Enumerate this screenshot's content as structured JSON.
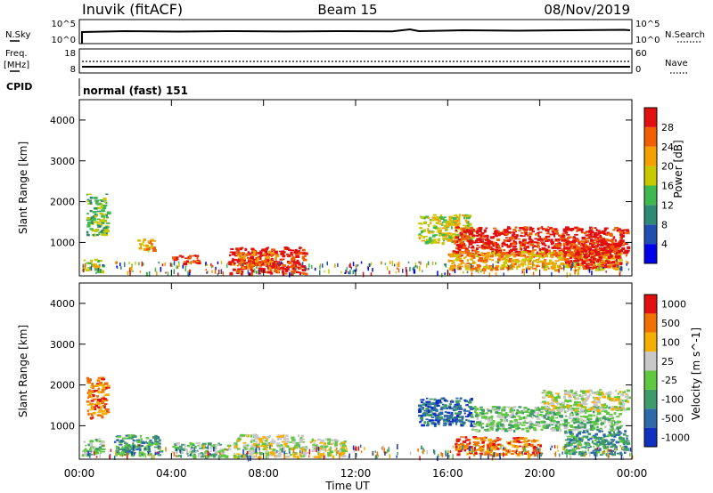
{
  "header": {
    "station": "Inuvik (fitACF)",
    "beam": "Beam 15",
    "date": "08/Nov/2019"
  },
  "strip1": {
    "left_label": "N.Sky",
    "left_ticks": [
      "10^5",
      "10^0"
    ],
    "right_ticks": [
      "10^5",
      "10^0"
    ],
    "right_label": "N.Search"
  },
  "strip2": {
    "left_label_1": "Freq.",
    "left_label_2": "[MHz]",
    "left_ticks": [
      "18",
      "8"
    ],
    "right_ticks": [
      "60",
      "0"
    ],
    "right_label": "Nave"
  },
  "cpid": {
    "label": "CPID",
    "value": "normal (fast) 151"
  },
  "x_axis": {
    "label": "Time UT",
    "ticks": [
      "00:00",
      "04:00",
      "08:00",
      "12:00",
      "16:00",
      "20:00",
      "00:00"
    ]
  },
  "chart_data": [
    {
      "type": "heatmap",
      "quantity": "power",
      "ylabel": "Slant Range [km]",
      "yticks": [
        "1000",
        "2000",
        "3000",
        "4000"
      ],
      "ylim": [
        180,
        4500
      ],
      "xlim_hours": [
        0,
        24
      ],
      "colorbar": {
        "label": "Power [dB]",
        "tick_labels": [
          "4",
          "8",
          "12",
          "16",
          "20",
          "24",
          "28"
        ],
        "colors": [
          "#0000e8",
          "#1f4fb0",
          "#2e8a72",
          "#40b850",
          "#c8c800",
          "#f4a000",
          "#f06000",
          "#e01010"
        ]
      },
      "regions": [
        {
          "t0": 0.3,
          "t1": 1.2,
          "r0": 1200,
          "r1": 2200,
          "level": 3
        },
        {
          "t0": 0.1,
          "t1": 1.0,
          "r0": 300,
          "r1": 600,
          "level": 4
        },
        {
          "t0": 2.5,
          "t1": 3.2,
          "r0": 800,
          "r1": 1100,
          "level": 5
        },
        {
          "t0": 4.0,
          "t1": 5.2,
          "r0": 500,
          "r1": 700,
          "level": 6
        },
        {
          "t0": 6.5,
          "t1": 9.8,
          "r0": 250,
          "r1": 900,
          "level": 7
        },
        {
          "t0": 6.8,
          "t1": 8.6,
          "r0": 400,
          "r1": 800,
          "level": 6
        },
        {
          "t0": 14.7,
          "t1": 17.0,
          "r0": 1000,
          "r1": 1700,
          "level": 4
        },
        {
          "t0": 16.2,
          "t1": 23.8,
          "r0": 700,
          "r1": 1400,
          "level": 7
        },
        {
          "t0": 16.0,
          "t1": 23.5,
          "r0": 350,
          "r1": 800,
          "level": 5
        },
        {
          "t0": 21.0,
          "t1": 23.5,
          "r0": 400,
          "r1": 1100,
          "level": 7
        }
      ]
    },
    {
      "type": "heatmap",
      "quantity": "velocity",
      "ylabel": "Slant Range [km]",
      "yticks": [
        "1000",
        "2000",
        "3000",
        "4000"
      ],
      "ylim": [
        180,
        4500
      ],
      "xlim_hours": [
        0,
        24
      ],
      "colorbar": {
        "label": "Velocity [m s^-1]",
        "tick_labels": [
          "1000",
          "500",
          "100",
          "25",
          "-25",
          "-100",
          "-500",
          "-1000"
        ],
        "colors": [
          "#1030c0",
          "#2f6aa8",
          "#3f9a6a",
          "#60c840",
          "#c8c8c8",
          "#f4b000",
          "#f07000",
          "#e01010"
        ]
      },
      "regions": [
        {
          "t0": 0.3,
          "t1": 1.2,
          "r0": 1200,
          "r1": 2200,
          "level": 6
        },
        {
          "t0": 0.1,
          "t1": 1.0,
          "r0": 300,
          "r1": 700,
          "level": 3
        },
        {
          "t0": 1.5,
          "t1": 3.5,
          "r0": 300,
          "r1": 800,
          "level": 2
        },
        {
          "t0": 4.0,
          "t1": 6.5,
          "r0": 250,
          "r1": 600,
          "level": 3
        },
        {
          "t0": 6.6,
          "t1": 9.8,
          "r0": 250,
          "r1": 800,
          "level": 4
        },
        {
          "t0": 10.0,
          "t1": 11.5,
          "r0": 250,
          "r1": 700,
          "level": 4
        },
        {
          "t0": 14.7,
          "t1": 17.0,
          "r0": 1000,
          "r1": 1700,
          "level": 1
        },
        {
          "t0": 16.3,
          "t1": 20.0,
          "r0": 300,
          "r1": 750,
          "level": 6
        },
        {
          "t0": 17.0,
          "t1": 23.5,
          "r0": 900,
          "r1": 1500,
          "level": 3
        },
        {
          "t0": 20.0,
          "t1": 23.8,
          "r0": 1400,
          "r1": 1900,
          "level": 4
        },
        {
          "t0": 21.0,
          "t1": 23.8,
          "r0": 300,
          "r1": 900,
          "level": 2
        }
      ]
    }
  ]
}
